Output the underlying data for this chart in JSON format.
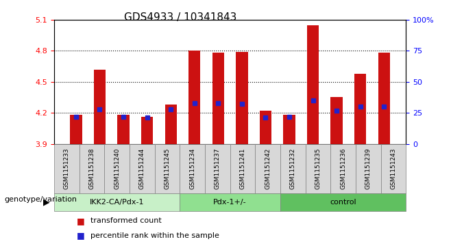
{
  "title": "GDS4933 / 10341843",
  "samples": [
    "GSM1151233",
    "GSM1151238",
    "GSM1151240",
    "GSM1151244",
    "GSM1151245",
    "GSM1151234",
    "GSM1151237",
    "GSM1151241",
    "GSM1151242",
    "GSM1151232",
    "GSM1151235",
    "GSM1151236",
    "GSM1151239",
    "GSM1151243"
  ],
  "transformed_count": [
    4.18,
    4.62,
    4.18,
    4.16,
    4.28,
    4.8,
    4.78,
    4.79,
    4.22,
    4.18,
    5.05,
    4.35,
    4.58,
    4.78
  ],
  "percentile_rank": [
    22,
    28,
    22,
    21,
    28,
    33,
    33,
    32,
    21,
    22,
    35,
    27,
    30,
    30
  ],
  "groups": [
    {
      "label": "IKK2-CA/Pdx-1",
      "start": 0,
      "end": 5,
      "color": "#c8f0c8"
    },
    {
      "label": "Pdx-1+/-",
      "start": 5,
      "end": 9,
      "color": "#90e090"
    },
    {
      "label": "control",
      "start": 9,
      "end": 14,
      "color": "#60c060"
    }
  ],
  "ylim_left": [
    3.9,
    5.1
  ],
  "ylim_right": [
    0,
    100
  ],
  "yticks_left": [
    3.9,
    4.2,
    4.5,
    4.8,
    5.1
  ],
  "yticks_right": [
    0,
    25,
    50,
    75,
    100
  ],
  "ytick_labels_right": [
    "0",
    "25",
    "50",
    "75",
    "100%"
  ],
  "bar_color": "#cc1111",
  "dot_color": "#2222cc",
  "baseline": 3.9,
  "dotted_lines": [
    4.2,
    4.5,
    4.8
  ],
  "bar_width": 0.5,
  "bg_color": "#f0f0f0",
  "legend_items": [
    {
      "label": "transformed count",
      "color": "#cc1111",
      "marker": "s"
    },
    {
      "label": "percentile rank within the sample",
      "color": "#2222cc",
      "marker": "s"
    }
  ],
  "genotype_label": "genotype/variation",
  "title_fontsize": 11,
  "axis_fontsize": 8
}
